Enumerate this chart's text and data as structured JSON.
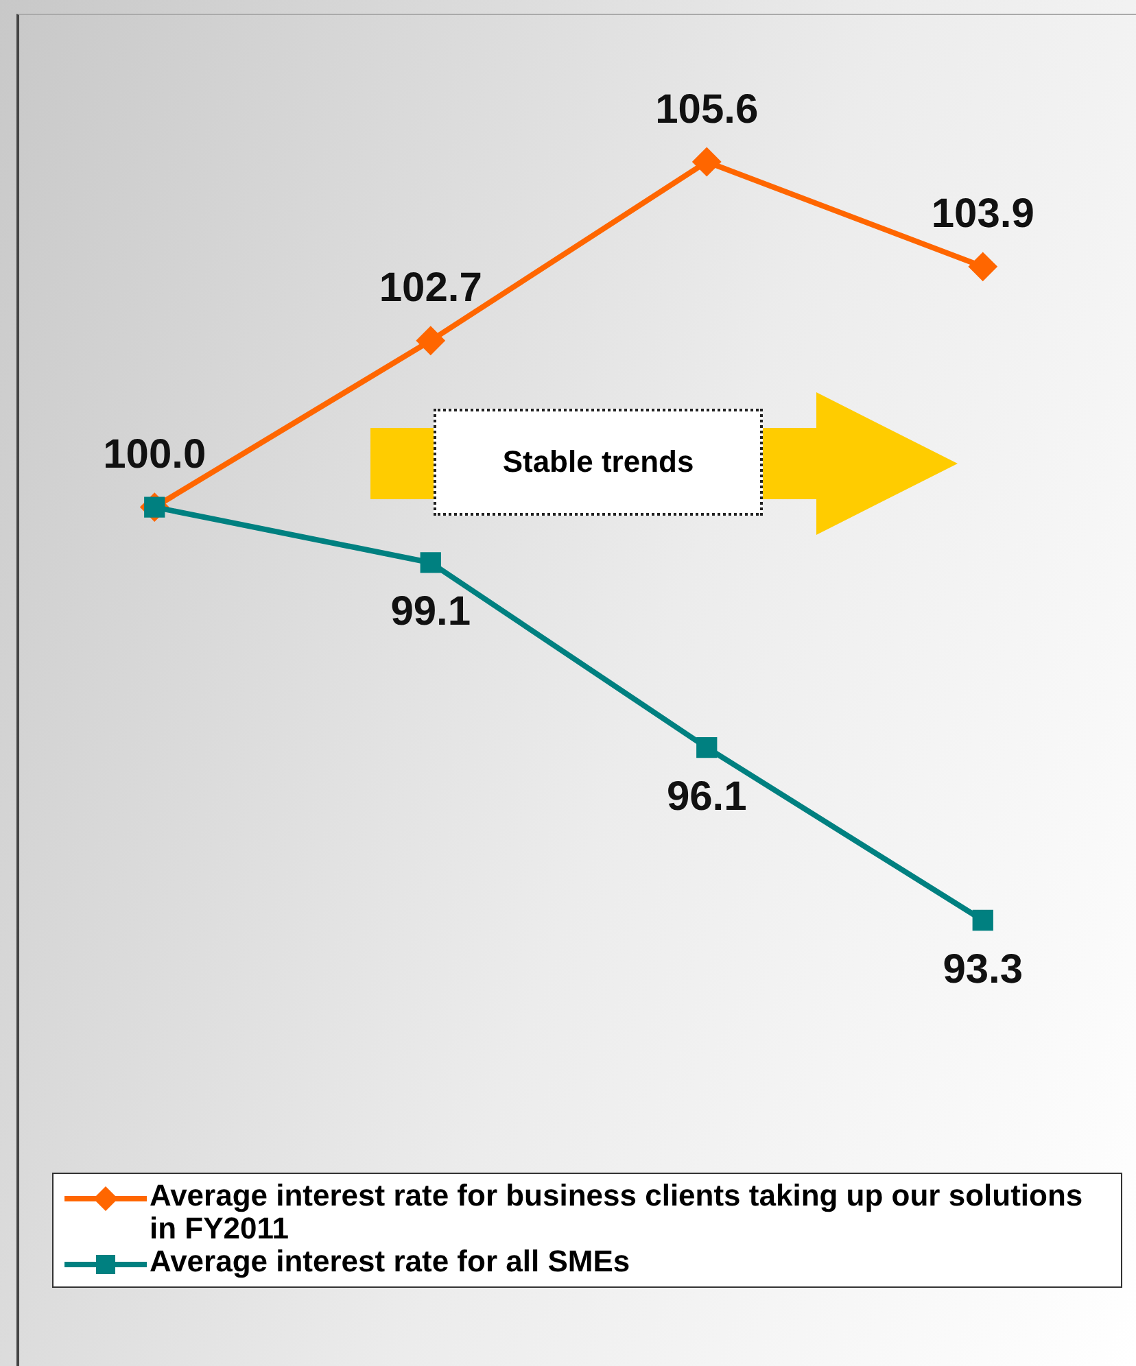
{
  "chart_data": {
    "type": "line",
    "categories": [
      null,
      null,
      null,
      null
    ],
    "series": [
      {
        "name": "Average interest rate for business clients taking up our solutions in FY2011",
        "color": "#ff6600",
        "marker": "diamond",
        "values": [
          100.0,
          102.7,
          105.6,
          103.9
        ],
        "value_labels": [
          "100.0",
          "102.7",
          "105.6",
          "103.9"
        ]
      },
      {
        "name": "Average interest rate for all SMEs",
        "color": "#008080",
        "marker": "square",
        "values": [
          100.0,
          99.1,
          96.1,
          93.3
        ],
        "value_labels": [
          null,
          "99.1",
          "96.1",
          "93.3"
        ]
      }
    ],
    "grid": false,
    "legend": "bottom",
    "annotations": [
      "Stable trends"
    ]
  }
}
